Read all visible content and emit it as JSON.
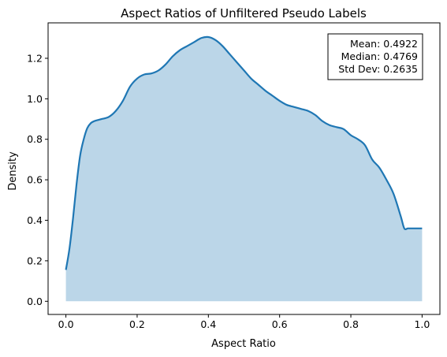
{
  "chart_data": {
    "type": "area",
    "title": "Aspect Ratios of Unfiltered Pseudo Labels",
    "xlabel": "Aspect Ratio",
    "ylabel": "Density",
    "xlim": [
      -0.05,
      1.05
    ],
    "ylim": [
      -0.065,
      1.375
    ],
    "xticks": [
      "0.0",
      "0.2",
      "0.4",
      "0.6",
      "0.8",
      "1.0"
    ],
    "yticks": [
      "0.0",
      "0.2",
      "0.4",
      "0.6",
      "0.8",
      "1.0",
      "1.2"
    ],
    "grid": false,
    "line_color": "#1f77b4",
    "fill_color": "#1f77b4",
    "fill_alpha": 0.3,
    "series": [
      {
        "x": [
          0.0,
          0.01,
          0.02,
          0.03,
          0.04,
          0.05,
          0.06,
          0.07,
          0.08,
          0.09,
          0.1,
          0.12,
          0.14,
          0.16,
          0.18,
          0.2,
          0.22,
          0.24,
          0.26,
          0.28,
          0.3,
          0.32,
          0.34,
          0.36,
          0.38,
          0.4,
          0.42,
          0.44,
          0.46,
          0.48,
          0.5,
          0.52,
          0.54,
          0.56,
          0.58,
          0.6,
          0.62,
          0.64,
          0.66,
          0.68,
          0.7,
          0.72,
          0.74,
          0.76,
          0.78,
          0.8,
          0.82,
          0.84,
          0.86,
          0.88,
          0.9,
          0.92,
          0.94,
          0.95,
          0.96,
          0.97,
          0.98,
          0.99,
          1.0
        ],
        "y": [
          0.155,
          0.26,
          0.41,
          0.58,
          0.72,
          0.8,
          0.855,
          0.88,
          0.89,
          0.895,
          0.9,
          0.91,
          0.94,
          0.99,
          1.06,
          1.1,
          1.12,
          1.125,
          1.14,
          1.17,
          1.21,
          1.24,
          1.26,
          1.28,
          1.3,
          1.305,
          1.29,
          1.26,
          1.22,
          1.18,
          1.14,
          1.1,
          1.07,
          1.04,
          1.015,
          0.99,
          0.97,
          0.96,
          0.95,
          0.94,
          0.92,
          0.89,
          0.87,
          0.86,
          0.85,
          0.82,
          0.8,
          0.77,
          0.7,
          0.66,
          0.6,
          0.53,
          0.42,
          0.36,
          0.36,
          0.36,
          0.36,
          0.36,
          0.36
        ]
      }
    ],
    "stats": {
      "mean": "Mean: 0.4922",
      "median": "Median: 0.4769",
      "std": "Std Dev: 0.2635"
    },
    "stats_placement": "top-right"
  }
}
